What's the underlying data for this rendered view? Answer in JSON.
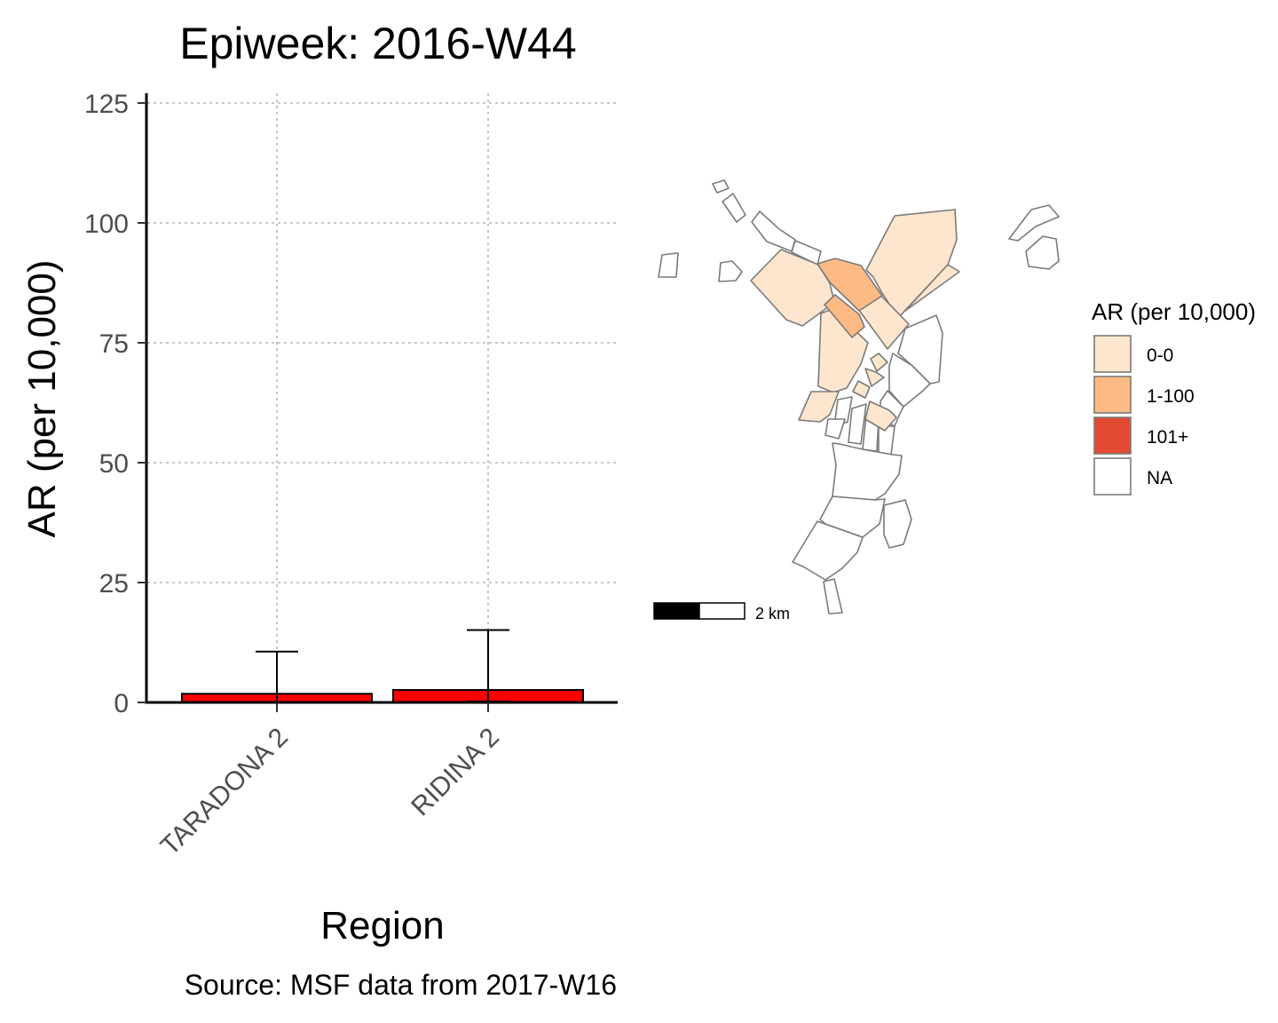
{
  "chart_data": [
    {
      "type": "bar",
      "title": "Epiweek: 2016-W44",
      "xlabel": "Region",
      "ylabel": "AR (per 10,000)",
      "caption": "Source: MSF data from 2017-W16",
      "categories": [
        "TARADONA 2",
        "RIDINA 2"
      ],
      "values": [
        1.8,
        2.6
      ],
      "error_upper": [
        10.6,
        15.1
      ],
      "error_lower": [
        0,
        0.2
      ],
      "ylim": [
        0,
        125
      ],
      "yticks": [
        0,
        25,
        50,
        75,
        100,
        125
      ],
      "bar_color": "#ff0000",
      "grid": true,
      "grid_style": "dotted"
    },
    {
      "type": "choropleth",
      "legend": {
        "title": "AR (per 10,000)",
        "position": "right",
        "entries": [
          {
            "label": "0-0",
            "color": "#fee6ce"
          },
          {
            "label": "1-100",
            "color": "#fdba84"
          },
          {
            "label": "101+",
            "color": "#e34a33"
          },
          {
            "label": "NA",
            "color": "#ffffff"
          }
        ]
      },
      "scale_bar": {
        "label": "2 km"
      }
    }
  ]
}
